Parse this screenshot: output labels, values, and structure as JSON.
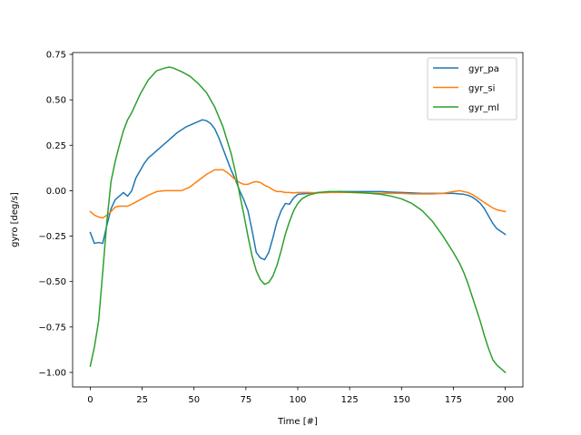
{
  "chart_data": {
    "type": "line",
    "xlabel": "Time [#]",
    "ylabel": "gyro [deg/s]",
    "xlim": [
      -8.5,
      208.5
    ],
    "ylim": [
      -1.08,
      0.76
    ],
    "xticks": [
      0,
      25,
      50,
      75,
      100,
      125,
      150,
      175,
      200
    ],
    "yticks": [
      -1.0,
      -0.75,
      -0.5,
      -0.25,
      0.0,
      0.25,
      0.5,
      0.75
    ],
    "xtick_labels": [
      "0",
      "25",
      "50",
      "75",
      "100",
      "125",
      "150",
      "175",
      "200"
    ],
    "ytick_labels": [
      "−1.00",
      "−0.75",
      "−0.50",
      "−0.25",
      "0.00",
      "0.25",
      "0.50",
      "0.75"
    ],
    "grid": false,
    "legend_position": "top-right",
    "series": [
      {
        "name": "gyr_pa",
        "color": "#1f77b4",
        "x": [
          0,
          2,
          4,
          6,
          8,
          10,
          12,
          14,
          16,
          18,
          20,
          22,
          24,
          26,
          28,
          30,
          32,
          34,
          36,
          38,
          40,
          42,
          44,
          46,
          48,
          50,
          52,
          54,
          56,
          58,
          60,
          62,
          64,
          66,
          68,
          70,
          72,
          74,
          76,
          78,
          80,
          82,
          84,
          86,
          88,
          90,
          92,
          94,
          96,
          98,
          100,
          105,
          110,
          115,
          120,
          125,
          130,
          135,
          140,
          145,
          150,
          155,
          160,
          165,
          170,
          175,
          180,
          182,
          184,
          186,
          188,
          190,
          192,
          194,
          196,
          198,
          200
        ],
        "values": [
          -0.23,
          -0.29,
          -0.285,
          -0.29,
          -0.19,
          -0.1,
          -0.05,
          -0.03,
          -0.01,
          -0.03,
          0.0,
          0.07,
          0.11,
          0.15,
          0.18,
          0.2,
          0.22,
          0.24,
          0.26,
          0.28,
          0.3,
          0.32,
          0.335,
          0.35,
          0.36,
          0.37,
          0.38,
          0.39,
          0.385,
          0.37,
          0.34,
          0.29,
          0.23,
          0.17,
          0.11,
          0.06,
          0.0,
          -0.05,
          -0.11,
          -0.22,
          -0.34,
          -0.37,
          -0.38,
          -0.34,
          -0.26,
          -0.17,
          -0.11,
          -0.07,
          -0.075,
          -0.04,
          -0.02,
          -0.015,
          -0.01,
          -0.01,
          -0.005,
          -0.005,
          -0.005,
          -0.005,
          -0.005,
          -0.008,
          -0.01,
          -0.012,
          -0.015,
          -0.015,
          -0.015,
          -0.015,
          -0.02,
          -0.025,
          -0.035,
          -0.05,
          -0.07,
          -0.1,
          -0.14,
          -0.18,
          -0.21,
          -0.225,
          -0.24
        ]
      },
      {
        "name": "gyr_si",
        "color": "#ff7f0e",
        "x": [
          0,
          2,
          4,
          6,
          8,
          10,
          12,
          14,
          16,
          18,
          20,
          24,
          28,
          32,
          36,
          40,
          44,
          48,
          52,
          56,
          60,
          64,
          66,
          68,
          70,
          72,
          74,
          76,
          78,
          80,
          82,
          84,
          86,
          88,
          90,
          92,
          94,
          96,
          98,
          100,
          105,
          110,
          115,
          120,
          125,
          130,
          135,
          140,
          145,
          150,
          155,
          160,
          165,
          170,
          175,
          178,
          180,
          182,
          184,
          186,
          188,
          190,
          192,
          194,
          196,
          198,
          200
        ],
        "values": [
          -0.115,
          -0.135,
          -0.145,
          -0.15,
          -0.135,
          -0.115,
          -0.09,
          -0.085,
          -0.085,
          -0.085,
          -0.075,
          -0.05,
          -0.025,
          -0.005,
          0.0,
          0.0,
          0.0,
          0.02,
          0.055,
          0.09,
          0.115,
          0.115,
          0.1,
          0.08,
          0.06,
          0.045,
          0.035,
          0.035,
          0.045,
          0.05,
          0.045,
          0.03,
          0.02,
          0.005,
          -0.005,
          -0.005,
          -0.01,
          -0.01,
          -0.012,
          -0.01,
          -0.01,
          -0.012,
          -0.01,
          -0.01,
          -0.01,
          -0.012,
          -0.013,
          -0.015,
          -0.015,
          -0.015,
          -0.018,
          -0.018,
          -0.018,
          -0.015,
          -0.005,
          0.0,
          -0.005,
          -0.01,
          -0.02,
          -0.035,
          -0.05,
          -0.065,
          -0.08,
          -0.095,
          -0.105,
          -0.11,
          -0.115
        ]
      },
      {
        "name": "gyr_ml",
        "color": "#2ca02c",
        "x": [
          0,
          2,
          4,
          6,
          8,
          10,
          12,
          14,
          16,
          18,
          20,
          24,
          28,
          32,
          36,
          38,
          40,
          44,
          48,
          52,
          56,
          60,
          64,
          68,
          70,
          72,
          74,
          76,
          78,
          80,
          82,
          84,
          86,
          88,
          90,
          92,
          94,
          96,
          98,
          100,
          102,
          105,
          110,
          115,
          120,
          125,
          130,
          135,
          140,
          145,
          150,
          155,
          160,
          165,
          170,
          175,
          178,
          180,
          182,
          184,
          186,
          188,
          190,
          192,
          194,
          196,
          198,
          200
        ],
        "values": [
          -0.965,
          -0.86,
          -0.72,
          -0.45,
          -0.17,
          0.05,
          0.16,
          0.25,
          0.33,
          0.39,
          0.43,
          0.53,
          0.61,
          0.66,
          0.675,
          0.68,
          0.675,
          0.655,
          0.63,
          0.59,
          0.54,
          0.46,
          0.35,
          0.2,
          0.1,
          -0.02,
          -0.13,
          -0.25,
          -0.36,
          -0.44,
          -0.49,
          -0.515,
          -0.505,
          -0.47,
          -0.41,
          -0.33,
          -0.24,
          -0.17,
          -0.11,
          -0.07,
          -0.045,
          -0.025,
          -0.01,
          -0.005,
          -0.005,
          -0.008,
          -0.01,
          -0.015,
          -0.02,
          -0.03,
          -0.045,
          -0.07,
          -0.11,
          -0.17,
          -0.25,
          -0.34,
          -0.4,
          -0.45,
          -0.51,
          -0.58,
          -0.65,
          -0.72,
          -0.8,
          -0.87,
          -0.93,
          -0.96,
          -0.98,
          -1.0
        ]
      }
    ]
  }
}
